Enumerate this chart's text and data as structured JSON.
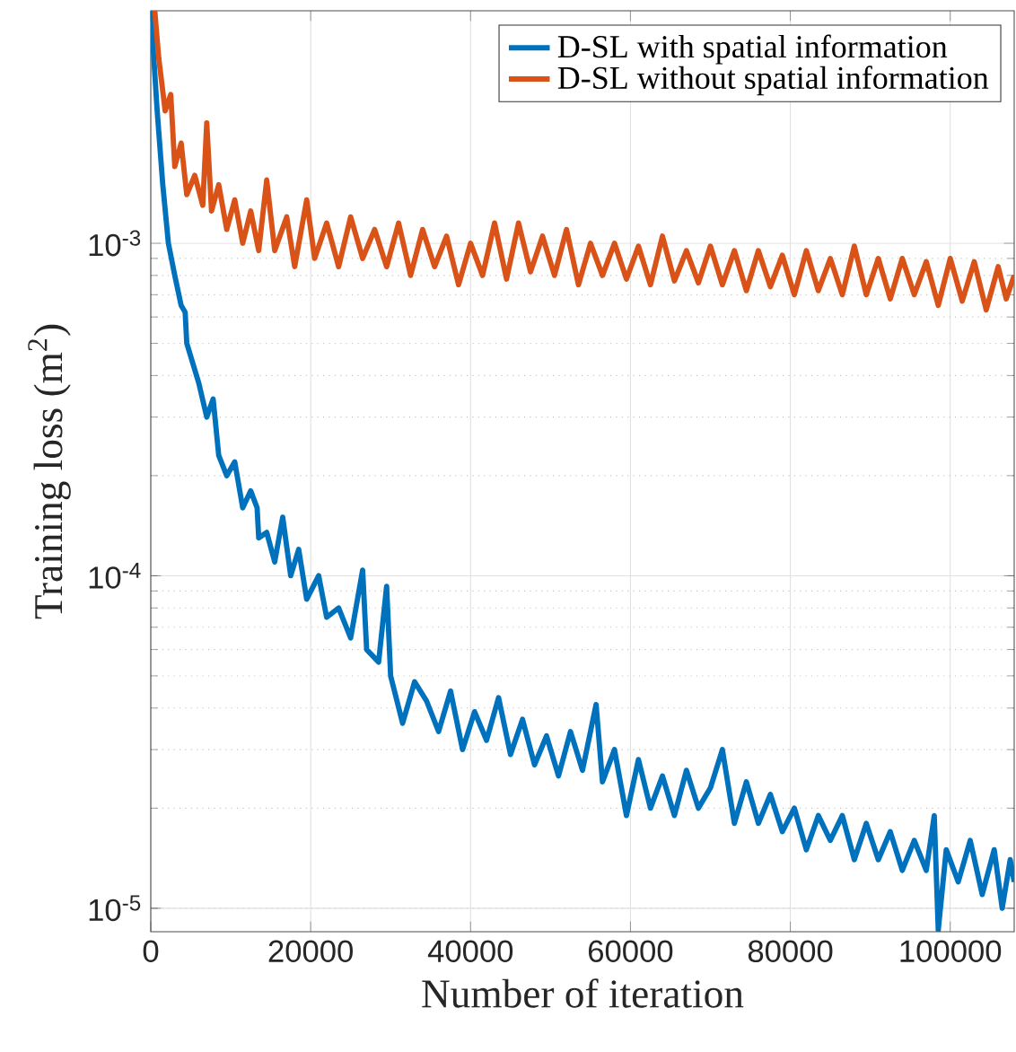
{
  "chart_data": {
    "type": "line",
    "xlabel": "Number of iteration",
    "ylabel": "Training loss (m$^{2}$)",
    "log": "y",
    "grid": true,
    "legend": "top right",
    "xlim": [
      0,
      108000
    ],
    "ylim": [
      8.5e-06,
      0.005
    ],
    "xticks": [
      0,
      20000,
      40000,
      60000,
      80000,
      100000
    ],
    "yticks": [
      {
        "value": 1e-05,
        "label": "10$^{-5}$"
      },
      {
        "value": 0.0001,
        "label": "10$^{-4}$"
      },
      {
        "value": 0.001,
        "label": "10$^{-3}$"
      }
    ],
    "series": [
      {
        "name": "D-SL with spatial information",
        "color": "#0072bd",
        "x": [
          0,
          800,
          1500,
          2200,
          3000,
          3800,
          4300,
          4500,
          6000,
          7000,
          7800,
          8500,
          9500,
          10500,
          11500,
          12500,
          13300,
          13500,
          14500,
          15500,
          16500,
          17500,
          18500,
          19500,
          21000,
          22000,
          23500,
          25000,
          26500,
          27000,
          28500,
          29500,
          30000,
          31500,
          33000,
          34500,
          36000,
          37500,
          39000,
          40500,
          42000,
          43500,
          45000,
          46500,
          48000,
          49500,
          51000,
          52500,
          54000,
          55700,
          56500,
          58000,
          59500,
          61000,
          62500,
          64000,
          65500,
          67000,
          68500,
          70000,
          71500,
          73000,
          74500,
          76000,
          77500,
          79000,
          80500,
          82000,
          83500,
          85000,
          86500,
          88000,
          89500,
          91000,
          92500,
          94000,
          95500,
          97000,
          98000,
          98500,
          99500,
          101000,
          102500,
          104000,
          105500,
          106500,
          107500,
          108000
        ],
        "values": [
          0.005,
          0.0025,
          0.0015,
          0.001,
          0.0008,
          0.00065,
          0.00062,
          0.0005,
          0.00038,
          0.0003,
          0.00034,
          0.00023,
          0.0002,
          0.00022,
          0.00016,
          0.00018,
          0.00016,
          0.00013,
          0.000135,
          0.00011,
          0.00015,
          0.0001,
          0.00012,
          8.5e-05,
          0.0001,
          7.5e-05,
          8e-05,
          6.5e-05,
          0.000104,
          6e-05,
          5.5e-05,
          9.3e-05,
          5e-05,
          3.6e-05,
          4.8e-05,
          4.2e-05,
          3.4e-05,
          4.5e-05,
          3e-05,
          3.9e-05,
          3.2e-05,
          4.3e-05,
          2.9e-05,
          3.7e-05,
          2.7e-05,
          3.3e-05,
          2.5e-05,
          3.4e-05,
          2.6e-05,
          4.1e-05,
          2.4e-05,
          3e-05,
          1.9e-05,
          2.8e-05,
          2e-05,
          2.5e-05,
          1.9e-05,
          2.6e-05,
          2e-05,
          2.3e-05,
          3e-05,
          1.8e-05,
          2.4e-05,
          1.8e-05,
          2.2e-05,
          1.7e-05,
          2e-05,
          1.5e-05,
          1.9e-05,
          1.6e-05,
          1.9e-05,
          1.4e-05,
          1.8e-05,
          1.4e-05,
          1.7e-05,
          1.3e-05,
          1.6e-05,
          1.3e-05,
          1.9e-05,
          8.6e-06,
          1.5e-05,
          1.2e-05,
          1.6e-05,
          1.1e-05,
          1.5e-05,
          1e-05,
          1.4e-05,
          1.2e-05
        ]
      },
      {
        "name": "D-SL without spatial information",
        "color": "#d95319",
        "x": [
          500,
          1000,
          1800,
          2500,
          3000,
          3800,
          4500,
          5500,
          6500,
          7000,
          7600,
          8500,
          9500,
          10500,
          11500,
          12500,
          13500,
          14500,
          15500,
          17000,
          18000,
          19500,
          20500,
          22000,
          23500,
          25000,
          26500,
          28000,
          29500,
          31000,
          32500,
          34000,
          35500,
          37000,
          38500,
          40000,
          41500,
          43000,
          44500,
          46000,
          47500,
          49000,
          50500,
          52000,
          53500,
          55000,
          56500,
          58000,
          59500,
          61000,
          62500,
          64000,
          65500,
          67000,
          68500,
          70000,
          71500,
          73000,
          74500,
          76000,
          77500,
          79000,
          80500,
          82000,
          83500,
          85000,
          86500,
          88000,
          89500,
          91000,
          92500,
          94000,
          95500,
          97000,
          98500,
          100000,
          101500,
          103000,
          104500,
          106000,
          107000,
          108000
        ],
        "values": [
          0.005,
          0.0036,
          0.0025,
          0.0028,
          0.0017,
          0.002,
          0.0014,
          0.0016,
          0.0013,
          0.0023,
          0.00125,
          0.0015,
          0.0011,
          0.00135,
          0.001,
          0.00125,
          0.00095,
          0.00155,
          0.00095,
          0.0012,
          0.00085,
          0.00135,
          0.0009,
          0.00115,
          0.00085,
          0.0012,
          0.0009,
          0.0011,
          0.00085,
          0.00115,
          0.0008,
          0.0011,
          0.00085,
          0.00105,
          0.00075,
          0.001,
          0.0008,
          0.00115,
          0.00078,
          0.00115,
          0.00082,
          0.00105,
          0.0008,
          0.0011,
          0.00075,
          0.001,
          0.0008,
          0.001,
          0.00078,
          0.00098,
          0.00075,
          0.00105,
          0.00077,
          0.00095,
          0.00076,
          0.00098,
          0.00075,
          0.00095,
          0.00072,
          0.00095,
          0.00074,
          0.00092,
          0.0007,
          0.00095,
          0.00072,
          0.0009,
          0.0007,
          0.00098,
          0.0007,
          0.0009,
          0.00068,
          0.0009,
          0.0007,
          0.00088,
          0.00065,
          0.0009,
          0.00067,
          0.00088,
          0.00063,
          0.00085,
          0.00068,
          0.0008
        ]
      }
    ]
  }
}
